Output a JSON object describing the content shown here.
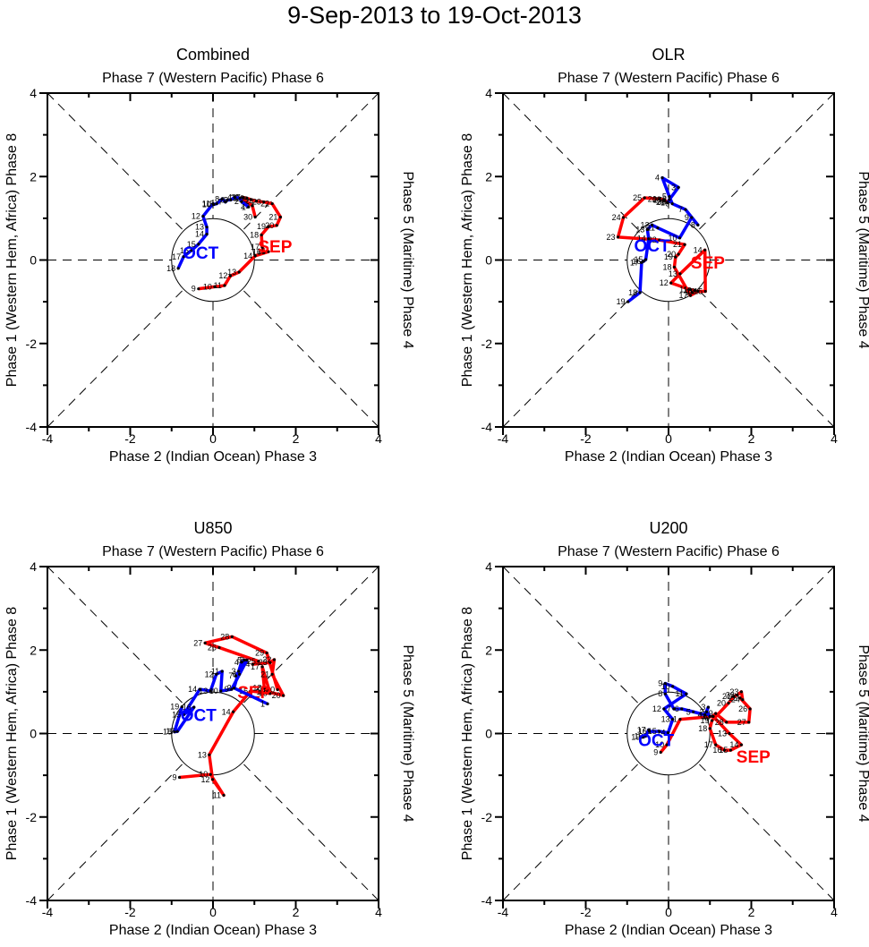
{
  "title": "9-Sep-2013 to 19-Oct-2013",
  "chart_data": [
    {
      "type": "line",
      "title": "Combined",
      "top_label": "Phase 7 (Western Pacific) Phase 6",
      "bottom_label": "Phase 2 (Indian Ocean) Phase 3",
      "left_label": "Phase 1 (Western Hem, Africa) Phase 8",
      "right_label": "Phase 5 (Maritime) Phase 4",
      "xlim": [
        -4,
        4
      ],
      "ylim": [
        -4,
        4
      ],
      "xticks": [
        "-4",
        "-2",
        "0",
        "2",
        "4"
      ],
      "yticks": [
        "4",
        "2",
        "0",
        "-2",
        "-4"
      ],
      "unit_circle_radius": 1,
      "series": [
        {
          "name": "SEP",
          "color": "#ff0000",
          "label_pos": [
            1.5,
            0.33
          ],
          "days": [
            9,
            10,
            11,
            12,
            13,
            14,
            15,
            16,
            17,
            18,
            19,
            20,
            21,
            22,
            23,
            24,
            25,
            26,
            27,
            28,
            29,
            30
          ],
          "x": [
            -0.35,
            0.04,
            0.28,
            0.42,
            0.63,
            1.02,
            1.34,
            1.23,
            1.19,
            1.17,
            1.34,
            1.54,
            1.63,
            1.43,
            1.23,
            1.05,
            0.91,
            0.82,
            0.73,
            0.69,
            0.95,
            1.02
          ],
          "y": [
            -0.69,
            -0.64,
            -0.61,
            -0.38,
            -0.29,
            0.1,
            0.2,
            0.19,
            0.31,
            0.6,
            0.8,
            0.83,
            1.03,
            1.35,
            1.39,
            1.41,
            1.45,
            1.48,
            1.5,
            1.49,
            1.3,
            1.03
          ]
        },
        {
          "name": "OCT",
          "color": "#0000ff",
          "label_pos": [
            -0.3,
            0.18
          ],
          "days": [
            1,
            2,
            3,
            4,
            5,
            6,
            7,
            8,
            9,
            10,
            11,
            12,
            13,
            14,
            15,
            16,
            17,
            18
          ],
          "x": [
            0.86,
            0.69,
            0.65,
            0.52,
            0.43,
            0.35,
            0.3,
            0.22,
            0.09,
            0.02,
            0.0,
            -0.24,
            -0.15,
            -0.15,
            -0.35,
            -0.52,
            -0.71,
            -0.84
          ],
          "y": [
            1.27,
            1.4,
            1.48,
            1.5,
            1.44,
            1.44,
            1.39,
            1.46,
            1.35,
            1.33,
            1.35,
            1.05,
            0.79,
            0.62,
            0.38,
            0.23,
            0.08,
            -0.2
          ]
        }
      ]
    },
    {
      "type": "line",
      "title": "OLR",
      "top_label": "Phase 7 (Western Pacific) Phase 6",
      "bottom_label": "Phase 2 (Indian Ocean) Phase 3",
      "left_label": "Phase 1 (Western Hem, Africa) Phase 8",
      "right_label": "Phase 5 (Maritime) Phase 4",
      "xlim": [
        -4,
        4
      ],
      "ylim": [
        -4,
        4
      ],
      "xticks": [
        "-4",
        "-2",
        "0",
        "2",
        "4"
      ],
      "yticks": [
        "4",
        "2",
        "0",
        "-2",
        "-4"
      ],
      "unit_circle_radius": 1,
      "series": [
        {
          "name": "SEP",
          "color": "#ff0000",
          "label_pos": [
            0.95,
            -0.05
          ],
          "days": [
            9,
            10,
            11,
            12,
            13,
            14,
            15,
            16,
            17,
            18,
            19,
            20,
            21,
            22,
            23,
            24,
            25,
            26,
            27,
            28,
            29,
            30
          ],
          "x": [
            0.57,
            0.63,
            0.53,
            0.06,
            0.28,
            0.88,
            0.89,
            0.71,
            0.53,
            0.14,
            0.17,
            0.24,
            0.39,
            -0.22,
            -1.22,
            -1.09,
            -0.58,
            -0.22,
            -0.09,
            -0.11,
            -0.02,
            0.01
          ],
          "y": [
            -0.78,
            -0.73,
            -0.71,
            -0.55,
            -0.33,
            0.24,
            -0.75,
            -0.75,
            -0.85,
            -0.17,
            0.07,
            0.14,
            0.37,
            0.48,
            0.55,
            1.02,
            1.49,
            1.46,
            1.44,
            1.45,
            1.38,
            1.39
          ]
        },
        {
          "name": "OCT",
          "color": "#0000ff",
          "label_pos": [
            -0.4,
            0.35
          ],
          "days": [
            1,
            2,
            3,
            4,
            5,
            6,
            7,
            8,
            9,
            10,
            11,
            12,
            13,
            14,
            15,
            16,
            17,
            18,
            19
          ],
          "x": [
            -0.02,
            0.02,
            0.24,
            -0.15,
            0.02,
            0.09,
            0.41,
            0.71,
            0.56,
            0.27,
            -0.26,
            -0.4,
            -0.51,
            -0.48,
            -0.55,
            -0.6,
            -0.65,
            -0.69,
            -0.98
          ],
          "y": [
            1.37,
            1.45,
            1.74,
            1.97,
            1.52,
            1.35,
            1.21,
            0.84,
            1.02,
            0.53,
            0.77,
            0.84,
            0.73,
            0.51,
            0.01,
            -0.03,
            -0.06,
            -0.78,
            -1.0
          ]
        }
      ]
    },
    {
      "type": "line",
      "title": "U850",
      "top_label": "Phase 7 (Western Pacific) Phase 6",
      "bottom_label": "Phase 2 (Indian Ocean) Phase 3",
      "left_label": "Phase 1 (Western Hem, Africa) Phase 8",
      "right_label": "Phase 5 (Maritime) Phase 4",
      "xlim": [
        -4,
        4
      ],
      "ylim": [
        -4,
        4
      ],
      "xticks": [
        "-4",
        "-2",
        "0",
        "2",
        "4"
      ],
      "yticks": [
        "4",
        "2",
        "0",
        "-2",
        "-4"
      ],
      "unit_circle_radius": 1,
      "series": [
        {
          "name": "SEP",
          "color": "#ff0000",
          "label_pos": [
            1.0,
            1.0
          ],
          "days": [
            9,
            10,
            11,
            12,
            13,
            14,
            15,
            16,
            17,
            18,
            19,
            20,
            21,
            22,
            23,
            24,
            25,
            26,
            27,
            28,
            29,
            30
          ],
          "x": [
            -0.81,
            -0.06,
            0.26,
            -0.01,
            -0.09,
            0.49,
            0.91,
            1.38,
            1.19,
            1.24,
            1.33,
            1.7,
            1.43,
            1.48,
            1.38,
            0.96,
            1.1,
            0.15,
            -0.19,
            0.46,
            1.3,
            1.56
          ],
          "y": [
            -1.05,
            -0.98,
            -1.48,
            -1.1,
            -0.51,
            0.52,
            1.02,
            0.96,
            1.6,
            1.09,
            1.0,
            0.91,
            1.42,
            1.77,
            1.7,
            1.66,
            1.73,
            2.06,
            2.17,
            2.32,
            1.93,
            1.05
          ]
        },
        {
          "name": "OCT",
          "color": "#0000ff",
          "label_pos": [
            -0.35,
            0.45
          ],
          "days": [
            1,
            2,
            3,
            4,
            5,
            6,
            7,
            8,
            9,
            10,
            11,
            12,
            13,
            14,
            15,
            16,
            17,
            18,
            19
          ],
          "x": [
            1.32,
            0.51,
            0.62,
            0.69,
            0.76,
            0.64,
            0.55,
            0.82,
            0.45,
            0.19,
            0.22,
            0.08,
            -0.06,
            -0.32,
            -0.71,
            -0.46,
            -0.86,
            -0.93,
            -0.75
          ],
          "y": [
            0.71,
            1.09,
            1.49,
            1.71,
            1.76,
            1.42,
            1.38,
            1.76,
            1.06,
            1.02,
            1.49,
            1.42,
            1.02,
            1.06,
            0.45,
            0.63,
            0.05,
            0.04,
            0.64
          ]
        }
      ]
    },
    {
      "type": "line",
      "title": "U200",
      "top_label": "Phase 7 (Western Pacific) Phase 6",
      "bottom_label": "Phase 2 (Indian Ocean) Phase 3",
      "left_label": "Phase 1 (Western Hem, Africa) Phase 8",
      "right_label": "Phase 5 (Maritime) Phase 4",
      "xlim": [
        -4,
        4
      ],
      "ylim": [
        -4,
        4
      ],
      "xticks": [
        "-4",
        "-2",
        "0",
        "2",
        "4"
      ],
      "yticks": [
        "4",
        "2",
        "0",
        "-2",
        "-4"
      ],
      "unit_circle_radius": 1,
      "series": [
        {
          "name": "SEP",
          "color": "#ff0000",
          "label_pos": [
            2.05,
            -0.55
          ],
          "days": [
            9,
            10,
            11,
            12,
            13,
            14,
            15,
            16,
            17,
            18,
            19,
            20,
            21,
            22,
            23,
            24,
            25,
            26,
            27,
            28,
            29,
            30
          ],
          "x": [
            -0.19,
            -0.04,
            0.28,
            1.08,
            1.47,
            1.76,
            1.5,
            1.35,
            1.14,
            1.0,
            1.05,
            1.45,
            1.58,
            1.66,
            1.76,
            1.79,
            1.73,
            1.97,
            1.94,
            1.4,
            1.14,
            1.07
          ],
          "y": [
            -0.45,
            -0.27,
            0.34,
            0.41,
            0.0,
            -0.27,
            -0.4,
            -0.4,
            -0.27,
            0.12,
            0.31,
            0.73,
            0.89,
            0.92,
            1.0,
            0.81,
            0.85,
            0.59,
            0.27,
            0.27,
            0.48,
            0.41
          ]
        },
        {
          "name": "OCT",
          "color": "#0000ff",
          "label_pos": [
            -0.3,
            -0.15
          ],
          "days": [
            1,
            2,
            3,
            4,
            5,
            6,
            7,
            8,
            9,
            10,
            11,
            12,
            13,
            14,
            15,
            16,
            17,
            18,
            19
          ],
          "x": [
            1.0,
            0.92,
            0.96,
            0.88,
            0.6,
            0.32,
            0.13,
            -0.08,
            -0.08,
            0.1,
            0.43,
            -0.11,
            0.1,
            -0.01,
            -0.22,
            -0.46,
            -0.48,
            -0.55,
            -0.62
          ],
          "y": [
            0.41,
            0.52,
            0.63,
            0.45,
            0.52,
            0.59,
            0.59,
            0.95,
            1.2,
            1.13,
            0.95,
            0.59,
            0.34,
            0.02,
            0.05,
            0.05,
            0.09,
            -0.06,
            -0.09
          ]
        }
      ]
    }
  ]
}
